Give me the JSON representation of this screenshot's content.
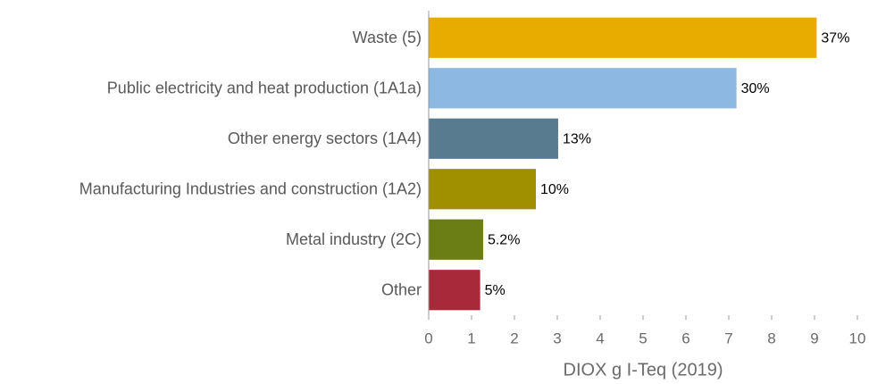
{
  "chart_data": {
    "type": "hbar",
    "categories": [
      "Waste (5)",
      "Public electricity and heat production (1A1a)",
      "Other energy sectors (1A4)",
      "Manufacturing Industries and construction (1A2)",
      "Metal industry (2C)",
      "Other"
    ],
    "values": [
      9.05,
      7.18,
      3.02,
      2.5,
      1.27,
      1.2
    ],
    "shares": [
      "37%",
      "30%",
      "13%",
      "10%",
      "5.2%",
      "5%"
    ],
    "colors": [
      "#e8ab00",
      "#8db8e2",
      "#587b8f",
      "#a09000",
      "#6b7d15",
      "#a8293a"
    ],
    "xlabel": "DIOX g I-Teq  (2019)",
    "xlim": [
      0,
      10
    ],
    "xticks": [
      0,
      1,
      2,
      3,
      4,
      5,
      6,
      7,
      8,
      9,
      10
    ],
    "grid": false
  }
}
